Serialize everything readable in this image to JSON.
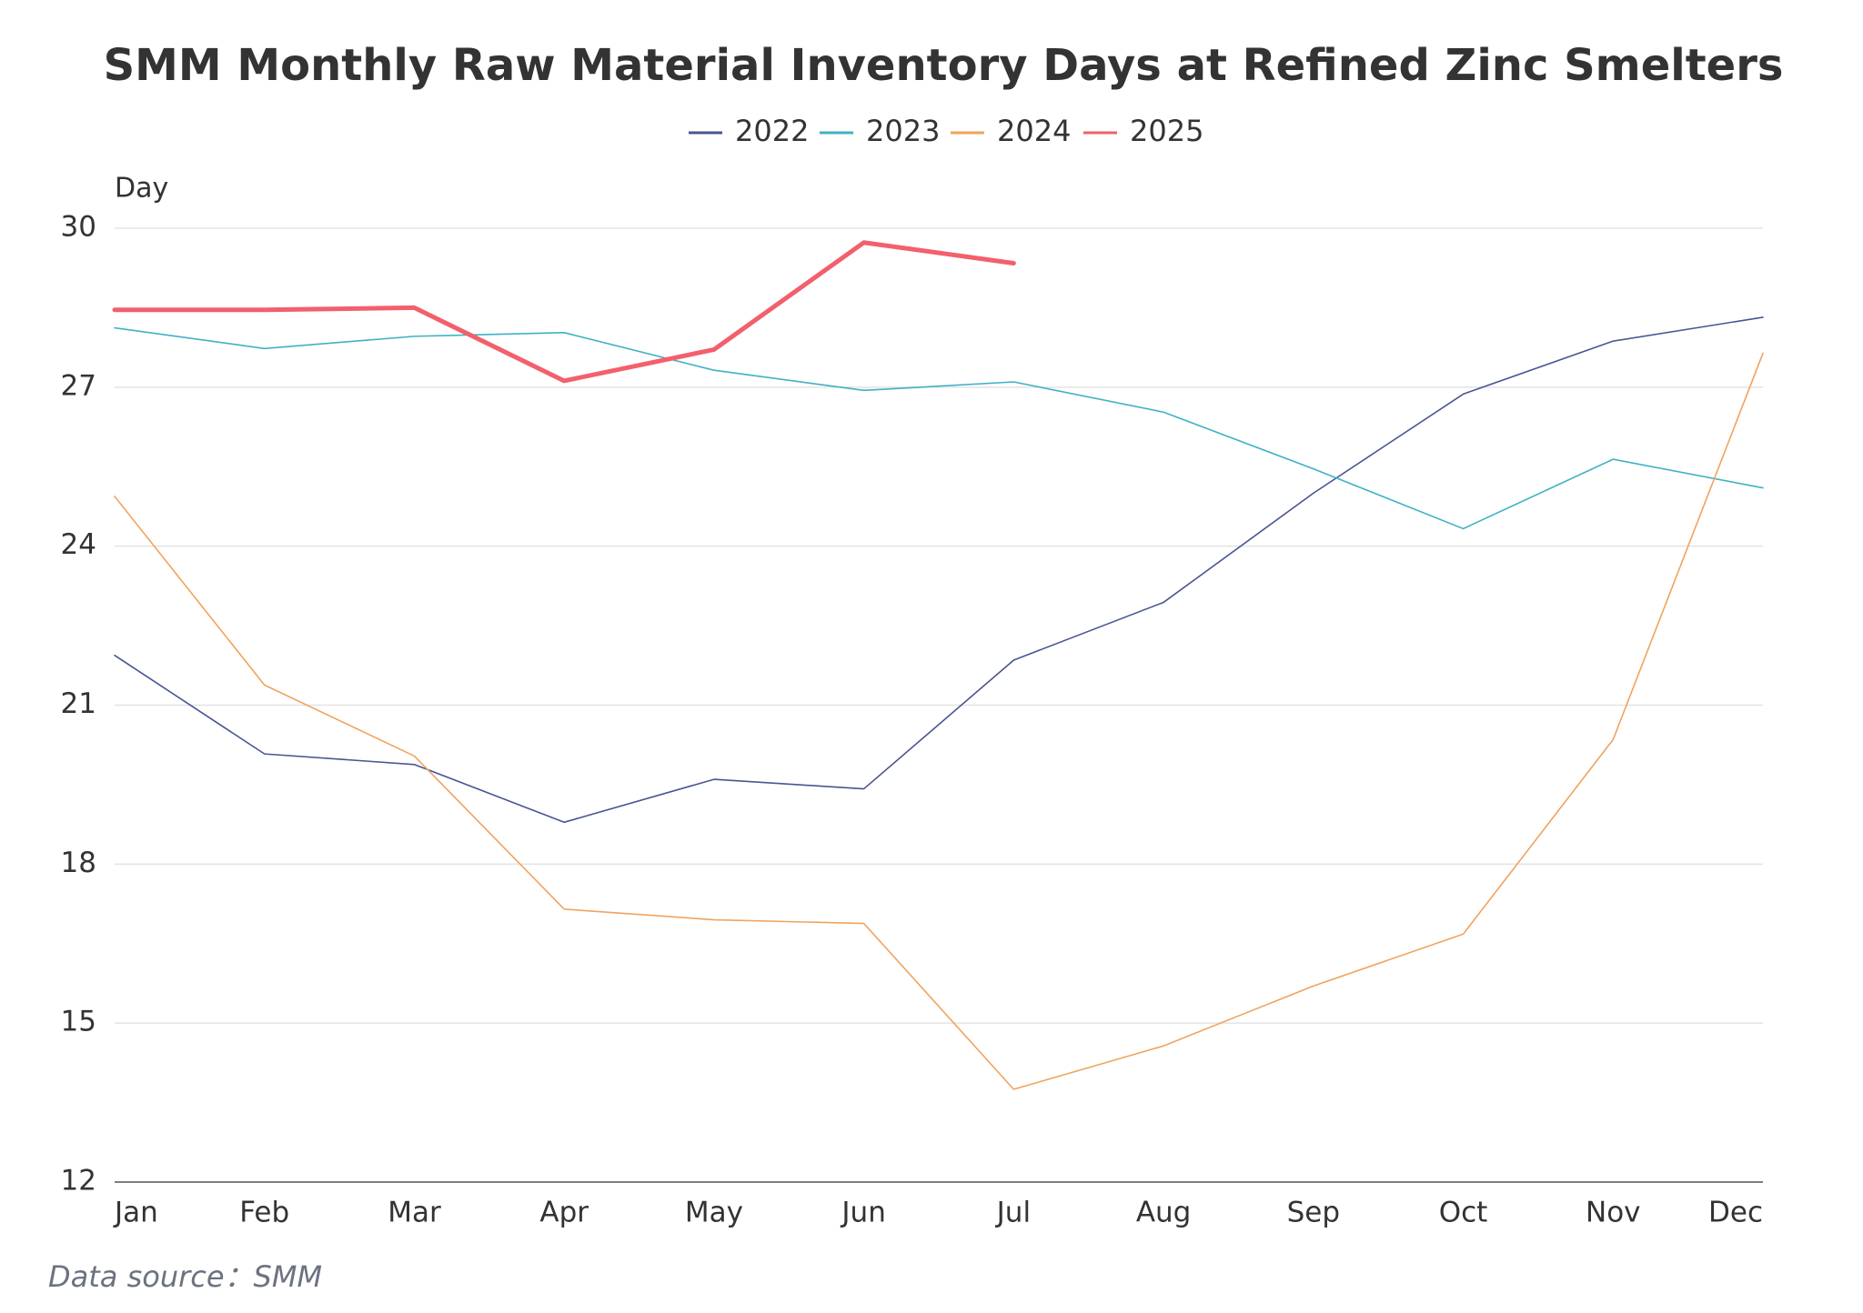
{
  "chart_data": {
    "type": "line",
    "title": "SMM Monthly Raw Material Inventory Days at Refined Zinc Smelters",
    "y_label": "Day",
    "source": "Data source：SMM",
    "categories": [
      "Jan",
      "Feb",
      "Mar",
      "Apr",
      "May",
      "Jun",
      "Jul",
      "Aug",
      "Sep",
      "Oct",
      "Nov",
      "Dec"
    ],
    "series": [
      {
        "name": "2022",
        "color": "#4a5592",
        "line_width": 1.6,
        "values": [
          21.94,
          20.08,
          19.88,
          18.79,
          19.6,
          19.42,
          21.85,
          22.94,
          25.0,
          26.87,
          27.87,
          28.32
        ]
      },
      {
        "name": "2023",
        "color": "#3fb1c4",
        "line_width": 1.6,
        "values": [
          28.12,
          27.73,
          27.96,
          28.03,
          27.32,
          26.94,
          27.1,
          26.53,
          25.46,
          24.33,
          25.64,
          25.1
        ]
      },
      {
        "name": "2024",
        "color": "#f0a35e",
        "line_width": 1.6,
        "values": [
          24.94,
          21.38,
          20.04,
          17.15,
          16.95,
          16.88,
          13.75,
          14.57,
          15.7,
          16.68,
          20.35,
          27.64
        ]
      },
      {
        "name": "2025",
        "color": "#f2606c",
        "line_width": 5,
        "values": [
          28.46,
          28.46,
          28.5,
          27.12,
          27.71,
          29.73,
          29.34,
          null,
          null,
          null,
          null,
          null
        ]
      }
    ],
    "ylim": [
      12,
      30
    ],
    "yticks": [
      12,
      15,
      18,
      21,
      24,
      27,
      30
    ],
    "grid": true
  }
}
